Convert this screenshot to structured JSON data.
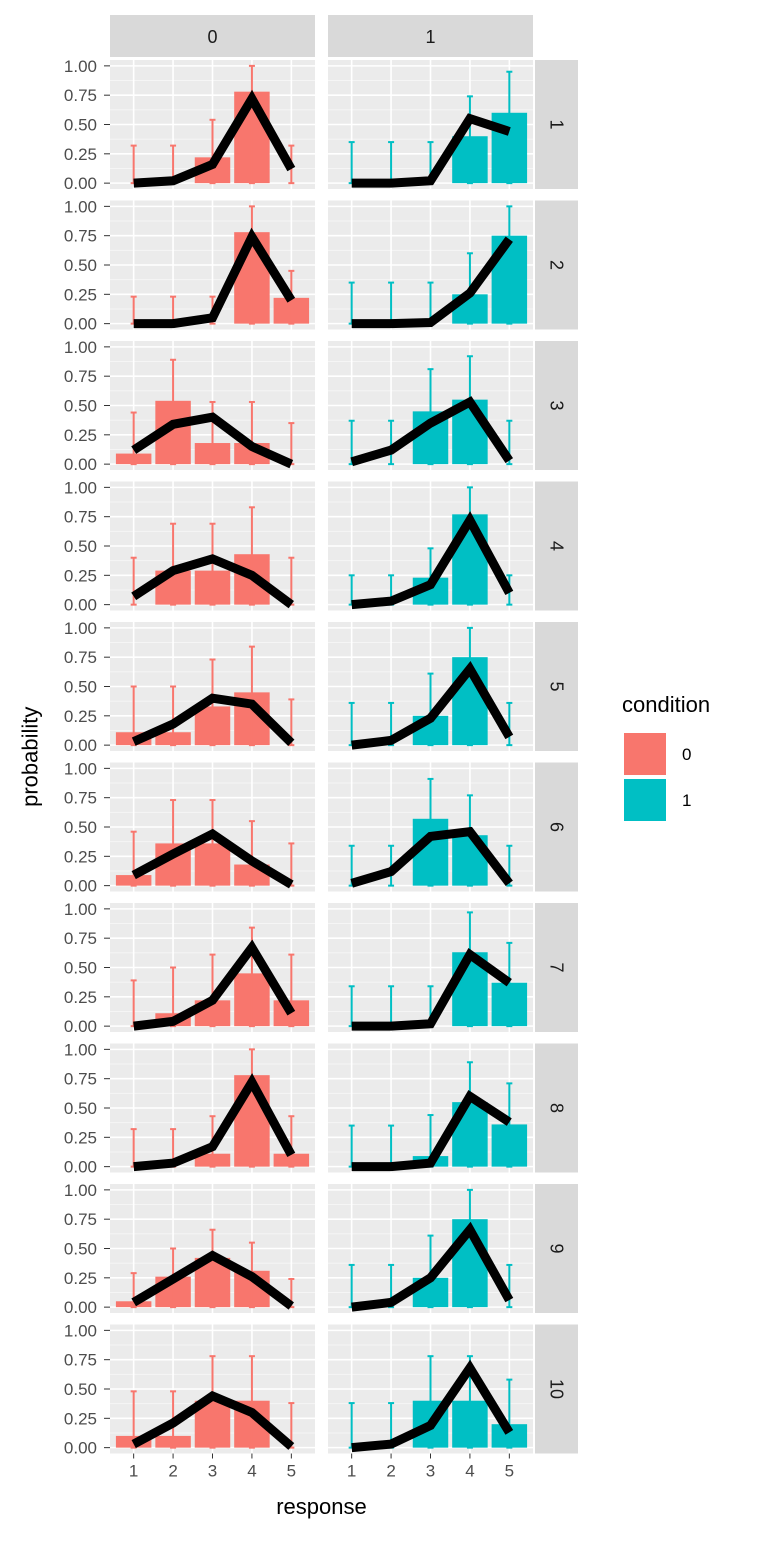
{
  "chart_data": {
    "type": "bar",
    "xlabel": "response",
    "ylabel": "probability",
    "x": [
      1,
      2,
      3,
      4,
      5
    ],
    "ylim": [
      0,
      1
    ],
    "yticks": [
      "0.00",
      "0.25",
      "0.50",
      "0.75",
      "1.00"
    ],
    "grid": true,
    "legend": {
      "title": "condition",
      "placement": "right",
      "entries": [
        {
          "label": "0",
          "color": "#F8766D"
        },
        {
          "label": "1",
          "color": "#00BFC4"
        }
      ]
    },
    "columns": [
      {
        "label": "0",
        "color": "#F8766D"
      },
      {
        "label": "1",
        "color": "#00BFC4"
      }
    ],
    "rows": [
      {
        "label": "1",
        "panels": [
          {
            "bars": [
              0,
              0,
              0.22,
              0.78,
              0
            ],
            "upper": [
              0.32,
              0.32,
              0.54,
              1.0,
              0.32
            ],
            "line": [
              0.0,
              0.02,
              0.16,
              0.72,
              0.12
            ]
          },
          {
            "bars": [
              0,
              0,
              0,
              0.4,
              0.6
            ],
            "upper": [
              0.35,
              0.35,
              0.35,
              0.74,
              0.95
            ],
            "line": [
              0.0,
              0.0,
              0.02,
              0.55,
              0.44
            ]
          }
        ]
      },
      {
        "label": "2",
        "panels": [
          {
            "bars": [
              0,
              0,
              0,
              0.78,
              0.22
            ],
            "upper": [
              0.23,
              0.23,
              0.23,
              1.0,
              0.45
            ],
            "line": [
              0.0,
              0.0,
              0.05,
              0.74,
              0.2
            ]
          },
          {
            "bars": [
              0,
              0,
              0,
              0.25,
              0.75
            ],
            "upper": [
              0.35,
              0.35,
              0.35,
              0.6,
              1.0
            ],
            "line": [
              0.0,
              0.0,
              0.01,
              0.26,
              0.72
            ]
          }
        ]
      },
      {
        "label": "3",
        "panels": [
          {
            "bars": [
              0.09,
              0.54,
              0.18,
              0.18,
              0
            ],
            "upper": [
              0.44,
              0.89,
              0.53,
              0.53,
              0.35
            ],
            "line": [
              0.12,
              0.34,
              0.4,
              0.15,
              0.0
            ]
          },
          {
            "bars": [
              0,
              0,
              0.45,
              0.55,
              0
            ],
            "upper": [
              0.37,
              0.37,
              0.81,
              0.92,
              0.37
            ],
            "line": [
              0.02,
              0.12,
              0.35,
              0.53,
              0.03
            ]
          }
        ]
      },
      {
        "label": "4",
        "panels": [
          {
            "bars": [
              0,
              0.29,
              0.29,
              0.43,
              0
            ],
            "upper": [
              0.4,
              0.69,
              0.69,
              0.83,
              0.4
            ],
            "line": [
              0.07,
              0.29,
              0.39,
              0.25,
              0.0
            ]
          },
          {
            "bars": [
              0,
              0,
              0.23,
              0.77,
              0
            ],
            "upper": [
              0.25,
              0.25,
              0.48,
              1.0,
              0.25
            ],
            "line": [
              0.0,
              0.03,
              0.17,
              0.72,
              0.1
            ]
          }
        ]
      },
      {
        "label": "5",
        "panels": [
          {
            "bars": [
              0.11,
              0.11,
              0.33,
              0.45,
              0
            ],
            "upper": [
              0.5,
              0.5,
              0.73,
              0.84,
              0.39
            ],
            "line": [
              0.03,
              0.18,
              0.4,
              0.35,
              0.02
            ]
          },
          {
            "bars": [
              0,
              0,
              0.25,
              0.75,
              0
            ],
            "upper": [
              0.36,
              0.36,
              0.61,
              1.0,
              0.36
            ],
            "line": [
              0.0,
              0.04,
              0.23,
              0.65,
              0.07
            ]
          }
        ]
      },
      {
        "label": "6",
        "panels": [
          {
            "bars": [
              0.09,
              0.36,
              0.36,
              0.18,
              0
            ],
            "upper": [
              0.46,
              0.73,
              0.73,
              0.55,
              0.36
            ],
            "line": [
              0.09,
              0.27,
              0.44,
              0.21,
              0.01
            ]
          },
          {
            "bars": [
              0,
              0,
              0.57,
              0.43,
              0
            ],
            "upper": [
              0.34,
              0.34,
              0.91,
              0.77,
              0.34
            ],
            "line": [
              0.02,
              0.12,
              0.42,
              0.46,
              0.02
            ]
          }
        ]
      },
      {
        "label": "7",
        "panels": [
          {
            "bars": [
              0,
              0.11,
              0.22,
              0.45,
              0.22
            ],
            "upper": [
              0.39,
              0.5,
              0.61,
              0.84,
              0.61
            ],
            "line": [
              0.0,
              0.04,
              0.22,
              0.67,
              0.11
            ]
          },
          {
            "bars": [
              0,
              0,
              0,
              0.63,
              0.37
            ],
            "upper": [
              0.34,
              0.34,
              0.34,
              0.97,
              0.71
            ],
            "line": [
              0.0,
              0.0,
              0.02,
              0.61,
              0.37
            ]
          }
        ]
      },
      {
        "label": "8",
        "panels": [
          {
            "bars": [
              0,
              0,
              0.11,
              0.78,
              0.11
            ],
            "upper": [
              0.32,
              0.32,
              0.43,
              1.0,
              0.43
            ],
            "line": [
              0.0,
              0.03,
              0.17,
              0.72,
              0.1
            ]
          },
          {
            "bars": [
              0,
              0,
              0.09,
              0.55,
              0.36
            ],
            "upper": [
              0.35,
              0.35,
              0.44,
              0.89,
              0.71
            ],
            "line": [
              0.0,
              0.0,
              0.03,
              0.6,
              0.38
            ]
          }
        ]
      },
      {
        "label": "9",
        "panels": [
          {
            "bars": [
              0.05,
              0.26,
              0.42,
              0.31,
              0
            ],
            "upper": [
              0.29,
              0.5,
              0.66,
              0.55,
              0.24
            ],
            "line": [
              0.04,
              0.24,
              0.44,
              0.26,
              0.01
            ]
          },
          {
            "bars": [
              0,
              0,
              0.25,
              0.75,
              0
            ],
            "upper": [
              0.36,
              0.36,
              0.61,
              1.0,
              0.36
            ],
            "line": [
              0.0,
              0.04,
              0.25,
              0.66,
              0.06
            ]
          }
        ]
      },
      {
        "label": "10",
        "panels": [
          {
            "bars": [
              0.1,
              0.1,
              0.4,
              0.4,
              0
            ],
            "upper": [
              0.48,
              0.48,
              0.78,
              0.78,
              0.38
            ],
            "line": [
              0.03,
              0.21,
              0.44,
              0.3,
              0.01
            ]
          },
          {
            "bars": [
              0,
              0,
              0.4,
              0.4,
              0.2
            ],
            "upper": [
              0.38,
              0.38,
              0.78,
              0.78,
              0.58
            ],
            "line": [
              0.0,
              0.03,
              0.19,
              0.68,
              0.13
            ]
          }
        ]
      }
    ]
  }
}
